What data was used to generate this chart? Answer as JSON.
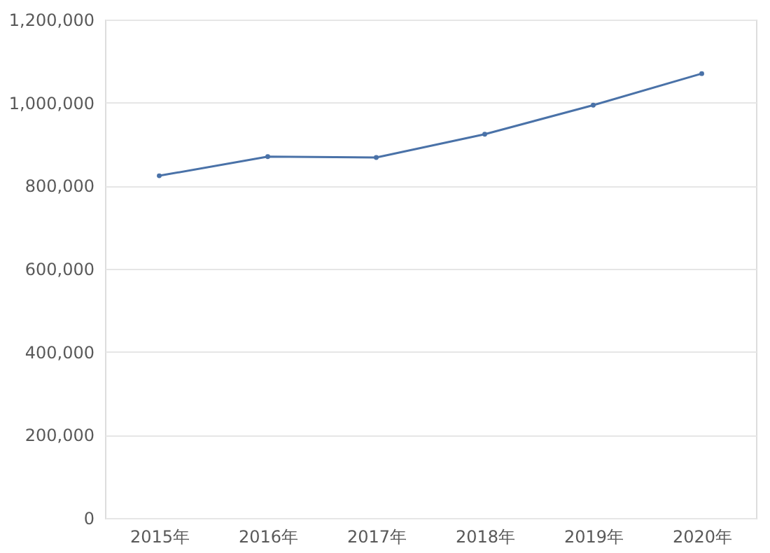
{
  "chart_data": {
    "type": "line",
    "categories": [
      "2015年",
      "2016年",
      "2017年",
      "2018年",
      "2019年",
      "2020年"
    ],
    "series": [
      {
        "color": "#4a72a8",
        "values": [
          824000,
          870000,
          868000,
          924000,
          994000,
          1070000
        ]
      }
    ],
    "ylim": [
      0,
      1200000
    ],
    "yticks": [
      {
        "value": 0,
        "label": "0"
      },
      {
        "value": 200000,
        "label": "200,000"
      },
      {
        "value": 400000,
        "label": "400,000"
      },
      {
        "value": 600000,
        "label": "600,000"
      },
      {
        "value": 800000,
        "label": "800,000"
      },
      {
        "value": 1000000,
        "label": "1,000,000"
      },
      {
        "value": 1200000,
        "label": "1,200,000"
      }
    ],
    "grid": "y",
    "marker": "circle",
    "line_style": "solid",
    "legend": false
  }
}
